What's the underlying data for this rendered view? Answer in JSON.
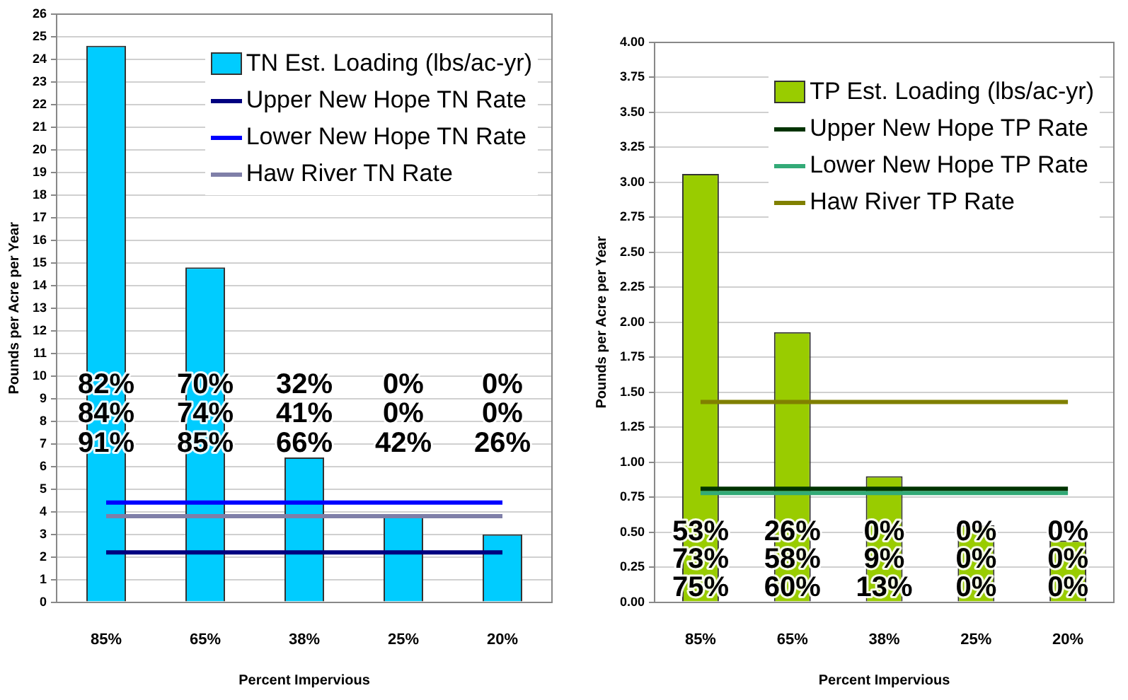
{
  "chart_data": [
    {
      "type": "bar",
      "xlabel": "Percent Impervious",
      "ylabel": "Pounds per Acre per Year",
      "categories": [
        "85%",
        "65%",
        "38%",
        "25%",
        "20%"
      ],
      "series": [
        {
          "name": "TN Est. Loading (lbs/ac-yr)",
          "color": "#00ccff",
          "values": [
            24.6,
            14.8,
            6.4,
            3.8,
            3.0
          ]
        },
        {
          "name": "Upper New Hope TN Rate",
          "type": "line",
          "color": "#000080",
          "values": [
            2.2,
            2.2,
            2.2,
            2.2,
            2.2
          ]
        },
        {
          "name": "Lower New Hope TN Rate",
          "type": "line",
          "color": "#0000ff",
          "values": [
            4.4,
            4.4,
            4.4,
            4.4,
            4.4
          ]
        },
        {
          "name": "Haw River TN Rate",
          "type": "line",
          "color": "#7f7fa8",
          "values": [
            3.8,
            3.8,
            3.8,
            3.8,
            3.8
          ]
        }
      ],
      "ylim": [
        0,
        26
      ],
      "yticks": [
        0,
        1,
        2,
        3,
        4,
        5,
        6,
        7,
        8,
        9,
        10,
        11,
        12,
        13,
        14,
        15,
        16,
        17,
        18,
        19,
        20,
        21,
        22,
        23,
        24,
        25,
        26
      ],
      "grid": "y",
      "legend": "top right",
      "marker": "none",
      "annotations": [
        "82%",
        "84%",
        "91%",
        "70%",
        "74%",
        "85%",
        "32%",
        "41%",
        "66%",
        "0%",
        "0%",
        "42%",
        "0%",
        "0%",
        "26%"
      ]
    },
    {
      "type": "bar",
      "xlabel": "Percent Impervious",
      "ylabel": "Pounds per Acre per Year",
      "categories": [
        "85%",
        "65%",
        "38%",
        "25%",
        "20%"
      ],
      "series": [
        {
          "name": "TP Est. Loading (lbs/ac-yr)",
          "color": "#99cc00",
          "values": [
            3.06,
            1.93,
            0.9,
            0.55,
            0.44
          ]
        },
        {
          "name": "Upper New Hope TP Rate",
          "type": "line",
          "color": "#003300",
          "values": [
            0.81,
            0.81,
            0.81,
            0.81,
            0.81
          ]
        },
        {
          "name": "Lower New Hope TP Rate",
          "type": "line",
          "color": "#33aa77",
          "values": [
            0.78,
            0.78,
            0.78,
            0.78,
            0.78
          ]
        },
        {
          "name": "Haw River TP Rate",
          "type": "line",
          "color": "#808000",
          "values": [
            1.43,
            1.43,
            1.43,
            1.43,
            1.43
          ]
        }
      ],
      "ylim": [
        0,
        4
      ],
      "yticks": [
        {
          "value": 0,
          "label": "0.00"
        },
        {
          "value": 0.25,
          "label": "0.25"
        },
        {
          "value": 0.5,
          "label": "0.50"
        },
        {
          "value": 0.75,
          "label": "0.75"
        },
        {
          "value": 1,
          "label": "1.00"
        },
        {
          "value": 1.25,
          "label": "1.25"
        },
        {
          "value": 1.5,
          "label": "1.50"
        },
        {
          "value": 1.75,
          "label": "1.75"
        },
        {
          "value": 2,
          "label": "2.00"
        },
        {
          "value": 2.25,
          "label": "2.25"
        },
        {
          "value": 2.5,
          "label": "2.50"
        },
        {
          "value": 2.75,
          "label": "2.75"
        },
        {
          "value": 3,
          "label": "3.00"
        },
        {
          "value": 3.25,
          "label": "3.25"
        },
        {
          "value": 3.5,
          "label": "3.50"
        },
        {
          "value": 3.75,
          "label": "3.75"
        },
        {
          "value": 4,
          "label": "4.00"
        }
      ],
      "grid": "y",
      "legend": "top right",
      "marker": "none",
      "annotations": [
        "53%",
        "73%",
        "75%",
        "26%",
        "58%",
        "60%",
        "0%",
        "9%",
        "13%",
        "0%",
        "0%",
        "0%",
        "0%",
        "0%",
        "0%"
      ]
    }
  ]
}
